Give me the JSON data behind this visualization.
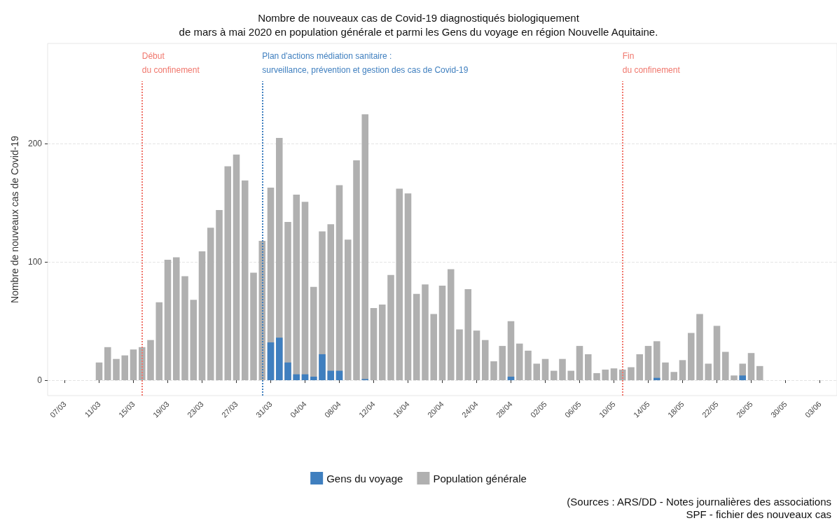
{
  "chart_data": {
    "type": "bar",
    "title": "Nombre de nouveaux cas de Covid-19 diagnostiqués biologiquement\nde mars à mai 2020 en population générale et parmi les Gens du voyage en région Nouvelle Aquitaine.",
    "ylabel": "Nombre de nouveaux cas de Covid-19",
    "x": [
      "--03-11",
      "--03-12",
      "--03-13",
      "--03-14",
      "--03-15",
      "--03-16",
      "--03-17",
      "--03-18",
      "--03-19",
      "--03-20",
      "--03-21",
      "--03-22",
      "--03-23",
      "--03-24",
      "--03-25",
      "--03-26",
      "--03-27",
      "--03-28",
      "--03-29",
      "--03-30",
      "--03-31",
      "--04-01",
      "--04-02",
      "--04-03",
      "--04-04",
      "--04-05",
      "--04-06",
      "--04-07",
      "--04-08",
      "--04-09",
      "--04-10",
      "--04-11",
      "--04-12",
      "--04-13",
      "--04-14",
      "--04-15",
      "--04-16",
      "--04-17",
      "--04-18",
      "--04-19",
      "--04-20",
      "--04-21",
      "--04-22",
      "--04-23",
      "--04-24",
      "--04-25",
      "--04-26",
      "--04-27",
      "--04-28",
      "--04-29",
      "--04-30",
      "--05-01",
      "--05-02",
      "--05-03",
      "--05-04",
      "--05-05",
      "--05-06",
      "--05-07",
      "--05-08",
      "--05-09",
      "--05-10",
      "--05-11",
      "--05-12",
      "--05-13",
      "--05-14",
      "--05-15",
      "--05-16",
      "--05-17",
      "--05-18",
      "--05-19",
      "--05-20",
      "--05-21",
      "--05-22",
      "--05-23",
      "--05-24",
      "--05-25",
      "--05-26",
      "--05-27"
    ],
    "series": [
      {
        "name": "Gens du voyage",
        "color": "#3f7fbf",
        "values": [
          null,
          null,
          null,
          null,
          null,
          null,
          null,
          null,
          null,
          null,
          null,
          null,
          null,
          null,
          null,
          null,
          null,
          null,
          null,
          null,
          32,
          36,
          15,
          5,
          5,
          3,
          22,
          8,
          8,
          null,
          null,
          1,
          null,
          null,
          null,
          null,
          null,
          null,
          null,
          null,
          null,
          null,
          null,
          null,
          null,
          null,
          null,
          null,
          3,
          null,
          null,
          null,
          null,
          null,
          null,
          null,
          null,
          null,
          null,
          null,
          null,
          null,
          null,
          null,
          null,
          2,
          null,
          null,
          null,
          null,
          null,
          null,
          null,
          null,
          null,
          4,
          null,
          null
        ]
      },
      {
        "name": "Population générale",
        "color": "#b0b0b0",
        "values": [
          15,
          28,
          18,
          21,
          26,
          28,
          34,
          66,
          102,
          104,
          88,
          68,
          109,
          129,
          144,
          181,
          191,
          169,
          91,
          118,
          163,
          205,
          134,
          157,
          151,
          79,
          126,
          132,
          165,
          119,
          186,
          225,
          61,
          64,
          89,
          162,
          158,
          73,
          81,
          56,
          80,
          94,
          43,
          77,
          42,
          34,
          16,
          29,
          50,
          31,
          25,
          14,
          18,
          8,
          18,
          8,
          29,
          22,
          6,
          9,
          10,
          9,
          11,
          22,
          29,
          33,
          15,
          7,
          17,
          40,
          56,
          14,
          46,
          24,
          4,
          14,
          23,
          12
        ]
      }
    ],
    "xlim": [
      "--03-05",
      "--06-05"
    ],
    "xticks": [
      {
        "value": "--03-07",
        "label": "07/03"
      },
      {
        "value": "--03-11",
        "label": "11/03"
      },
      {
        "value": "--03-15",
        "label": "15/03"
      },
      {
        "value": "--03-19",
        "label": "19/03"
      },
      {
        "value": "--03-23",
        "label": "23/03"
      },
      {
        "value": "--03-27",
        "label": "27/03"
      },
      {
        "value": "--03-31",
        "label": "31/03"
      },
      {
        "value": "--04-04",
        "label": "04/04"
      },
      {
        "value": "--04-08",
        "label": "08/04"
      },
      {
        "value": "--04-12",
        "label": "12/04"
      },
      {
        "value": "--04-16",
        "label": "16/04"
      },
      {
        "value": "--04-20",
        "label": "20/04"
      },
      {
        "value": "--04-24",
        "label": "24/04"
      },
      {
        "value": "--04-28",
        "label": "28/04"
      },
      {
        "value": "--05-02",
        "label": "02/05"
      },
      {
        "value": "--05-06",
        "label": "06/05"
      },
      {
        "value": "--05-10",
        "label": "10/05"
      },
      {
        "value": "--05-14",
        "label": "14/05"
      },
      {
        "value": "--05-18",
        "label": "18/05"
      },
      {
        "value": "--05-22",
        "label": "22/05"
      },
      {
        "value": "--05-26",
        "label": "26/05"
      },
      {
        "value": "--05-30",
        "label": "30/05"
      },
      {
        "value": "--06-03",
        "label": "03/06"
      }
    ],
    "ylim": [
      -13,
      285
    ],
    "yticks": [
      0,
      100,
      200
    ],
    "ref_lines": [
      {
        "axis": "x",
        "value": "--03-16",
        "label": "Début\ndu confinement",
        "color": "#f0776d",
        "line_style": "dotted"
      },
      {
        "axis": "x",
        "value": "--03-30",
        "label": "Plan d'actions médiation sanitaire :\nsurveillance, prévention et gestion des cas de Covid-19",
        "color": "#3f7fbf",
        "line_style": "dotted"
      },
      {
        "axis": "x",
        "value": "--05-11",
        "label": "Fin\ndu confinement",
        "color": "#f0776d",
        "line_style": "dotted"
      }
    ],
    "annotations": [
      "(Sources : ARS/DD - Notes journalières des associations",
      "SPF - fichier des nouveaux cas"
    ],
    "grid": "y",
    "legend": "bottom"
  }
}
